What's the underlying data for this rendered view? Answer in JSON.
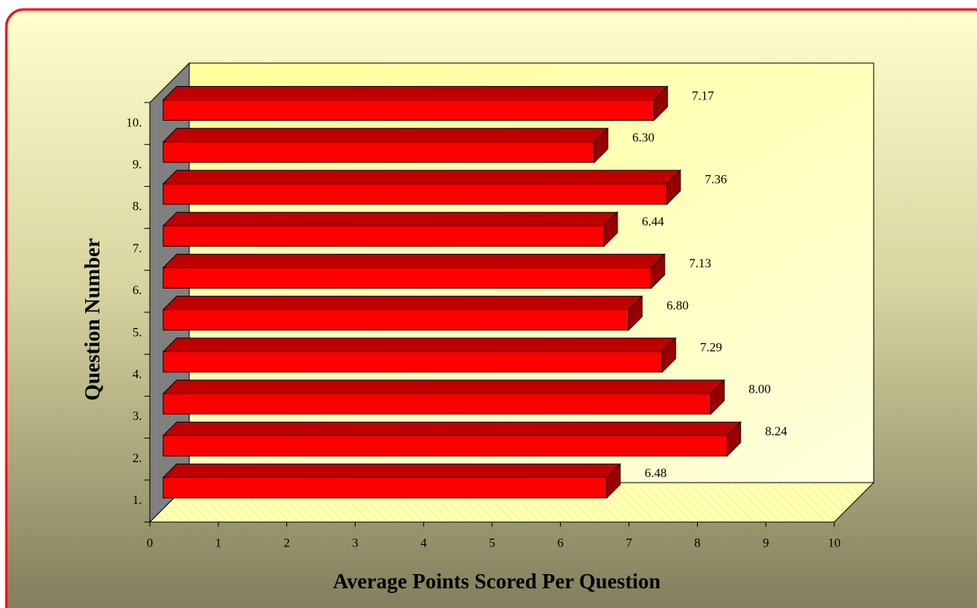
{
  "chart_data": {
    "type": "bar",
    "orientation": "horizontal",
    "x_label": "Average Points Scored Per Question",
    "y_label": "Question Number",
    "categories": [
      "1.",
      "2.",
      "3.",
      "4.",
      "5.",
      "6.",
      "7.",
      "8.",
      "9.",
      "10."
    ],
    "values": [
      6.48,
      8.24,
      8.0,
      7.29,
      6.8,
      7.13,
      6.44,
      7.36,
      6.3,
      7.17
    ],
    "value_labels": [
      "6.48",
      "8.24",
      "8.00",
      "7.29",
      "6.80",
      "7.13",
      "6.44",
      "7.36",
      "6.30",
      "7.17"
    ],
    "color": "#ff0000",
    "xlim": [
      0,
      10
    ],
    "xticks": [
      0,
      1,
      2,
      3,
      4,
      5,
      6,
      7,
      8,
      9,
      10
    ],
    "grid": false
  }
}
